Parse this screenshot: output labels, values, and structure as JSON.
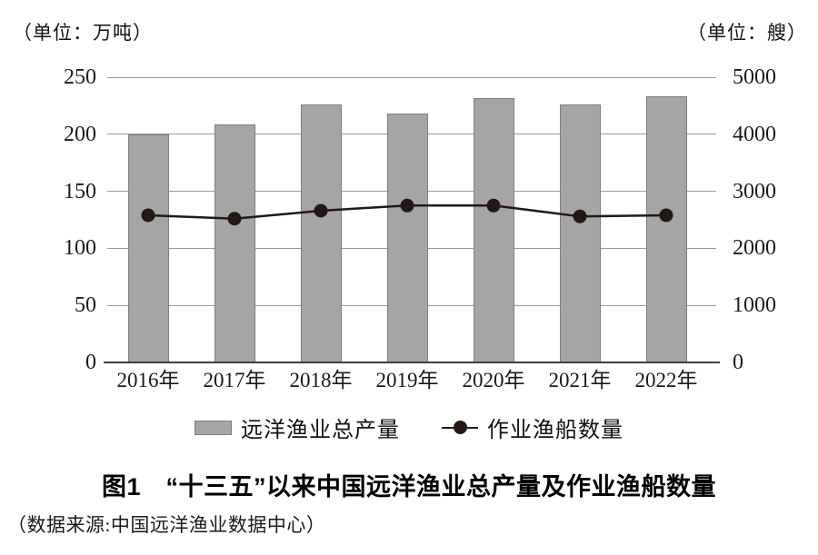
{
  "chart_data": {
    "type": "bar",
    "combo": "bar+line dual axis",
    "title": "图1　“十三五”以来中国远洋渔业总产量及作业渔船数量",
    "source": "（数据来源:中国远洋渔业数据中心）",
    "categories": [
      "2016年",
      "2017年",
      "2018年",
      "2019年",
      "2020年",
      "2021年",
      "2022年"
    ],
    "series": [
      {
        "name": "远洋渔业总产量",
        "type": "bar",
        "axis": "left",
        "values": [
          200,
          209,
          226,
          218,
          232,
          226,
          233.5
        ]
      },
      {
        "name": "作业渔船数量",
        "type": "line",
        "axis": "right",
        "values": [
          2580,
          2520,
          2660,
          2750,
          2750,
          2560,
          2580
        ]
      }
    ],
    "left_axis": {
      "unit": "（单位：万吨）",
      "ticks": [
        0,
        50,
        100,
        150,
        200,
        250
      ],
      "min": 0,
      "max": 250
    },
    "right_axis": {
      "unit": "（单位：艘）",
      "ticks": [
        0,
        1000,
        2000,
        3000,
        4000,
        5000
      ],
      "min": 0,
      "max": 5000
    },
    "legend_position": "bottom",
    "grid": "horizontal",
    "colors": {
      "bar_fill": "#a5a5a5",
      "bar_border": "#7d7d7d",
      "line": "#231815",
      "gridline": "#9a9a9a",
      "axis_baseline": "#3f3f3f",
      "text": "#111111",
      "background": "#ffffff"
    }
  }
}
